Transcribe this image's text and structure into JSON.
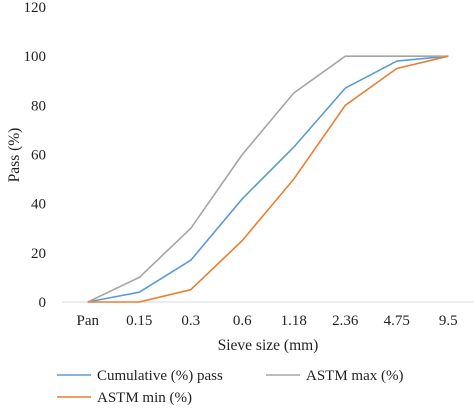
{
  "chart_data": {
    "type": "line",
    "title": "",
    "xlabel": "Sieve size (mm)",
    "ylabel": "Pass (%)",
    "categories": [
      "Pan",
      "0.15",
      "0.3",
      "0.6",
      "1.18",
      "2.36",
      "4.75",
      "9.5"
    ],
    "ylim": [
      0,
      120
    ],
    "yticks": [
      0,
      20,
      40,
      60,
      80,
      100,
      120
    ],
    "grid": false,
    "legend_position": "bottom",
    "series": [
      {
        "name": "Cumulative (%) pass",
        "color": "#5b9bd5",
        "values": [
          0,
          4,
          17,
          42,
          63,
          87,
          98,
          100
        ]
      },
      {
        "name": "ASTM max (%)",
        "color": "#a5a5a5",
        "values": [
          0,
          10,
          30,
          60,
          85,
          100,
          100,
          100
        ]
      },
      {
        "name": "ASTM min (%)",
        "color": "#ed7d31",
        "values": [
          0,
          0,
          5,
          25,
          50,
          80,
          95,
          100
        ]
      }
    ]
  }
}
